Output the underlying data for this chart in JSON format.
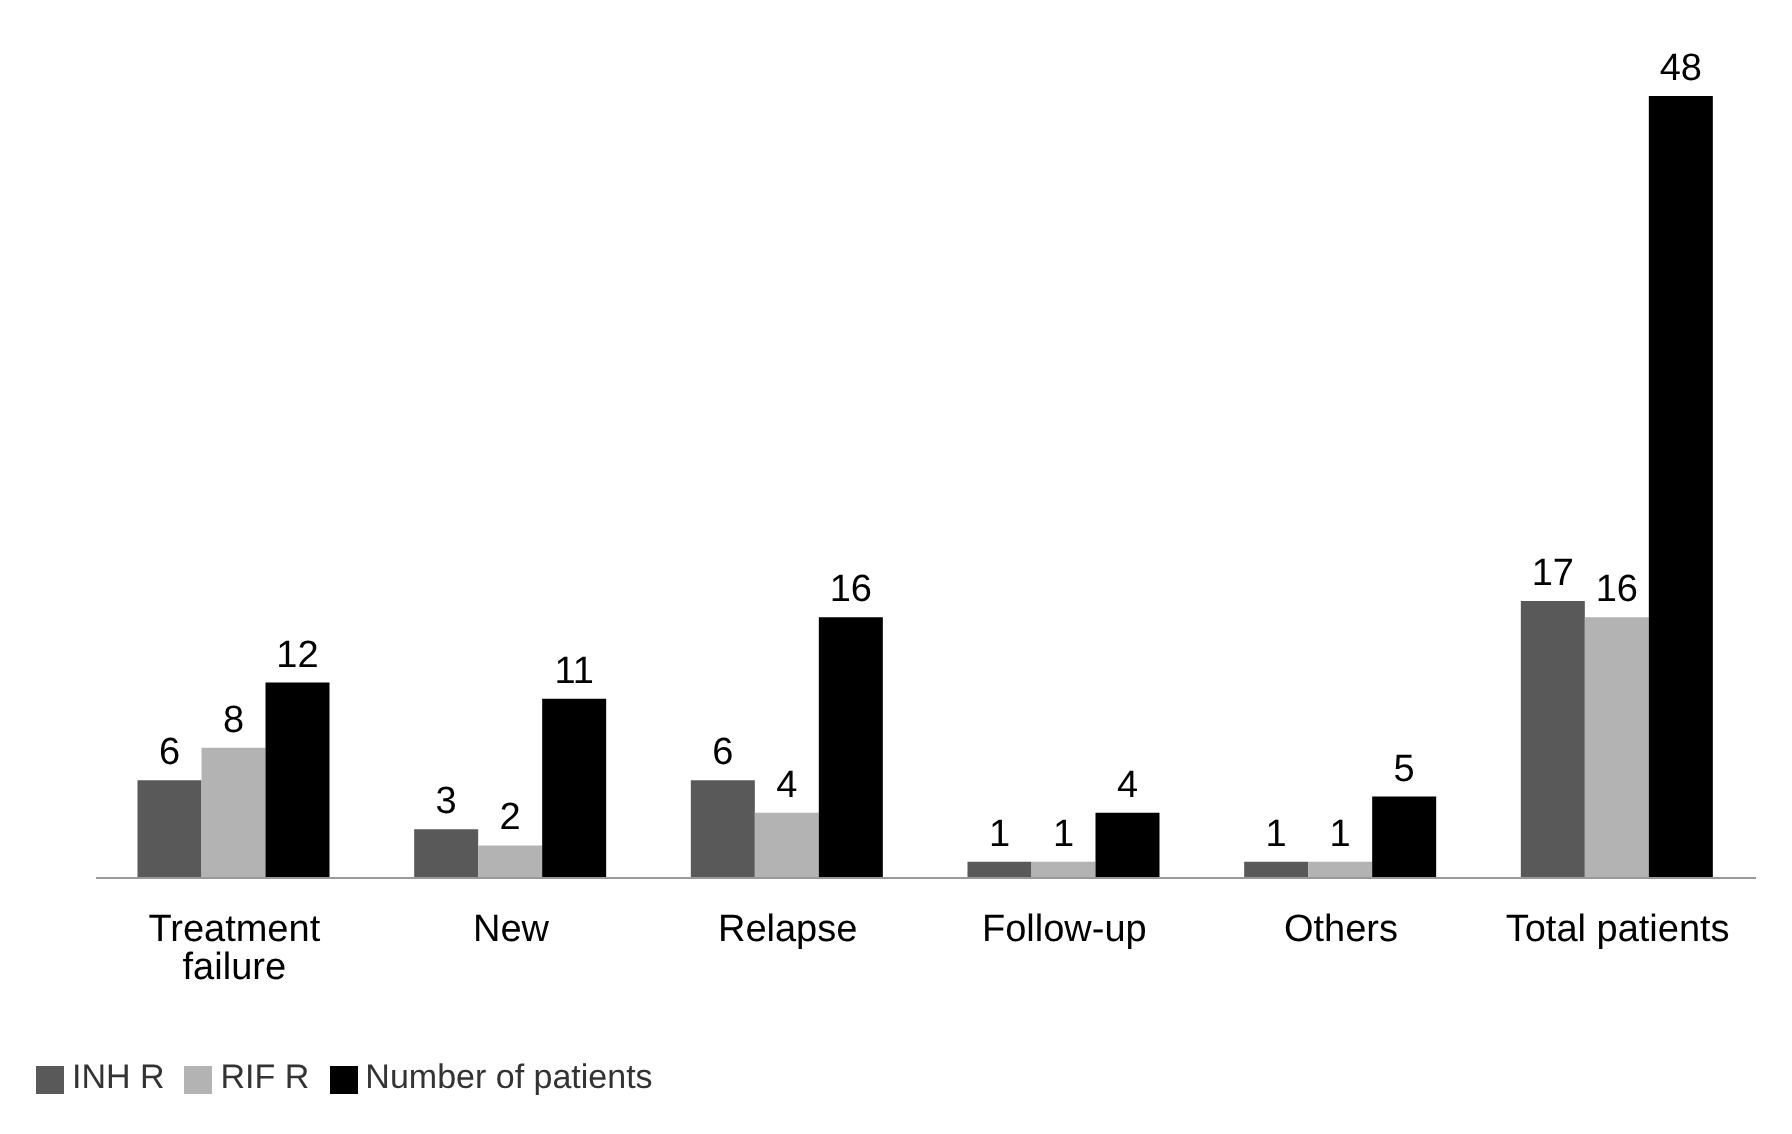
{
  "chart_data": {
    "type": "bar",
    "categories": [
      "Treatment failure",
      "New",
      "Relapse",
      "Follow-up",
      "Others",
      "Total patients"
    ],
    "series": [
      {
        "name": "INH R",
        "color": "#595959",
        "values": [
          6,
          3,
          6,
          1,
          1,
          17
        ]
      },
      {
        "name": "RIF R",
        "color": "#b3b3b3",
        "values": [
          8,
          2,
          4,
          1,
          1,
          16
        ]
      },
      {
        "name": "Number of patients",
        "color": "#000000",
        "values": [
          12,
          11,
          16,
          4,
          5,
          48
        ]
      }
    ],
    "data_labels": true,
    "legend": "bottom left",
    "grid": false
  }
}
